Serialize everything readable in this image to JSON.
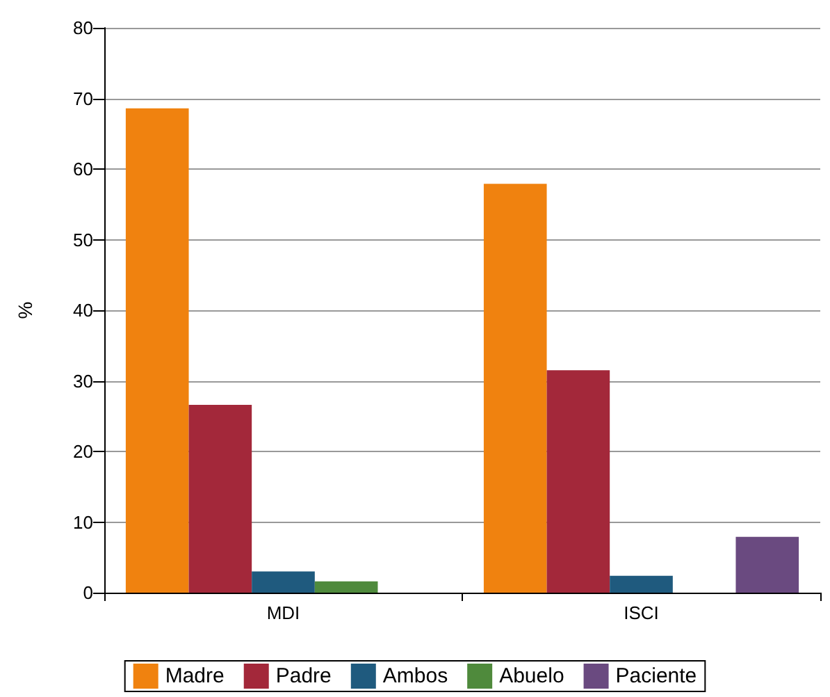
{
  "chart_data": {
    "type": "bar",
    "ylabel": "%",
    "categories": [
      "MDI",
      "ISCI"
    ],
    "series": [
      {
        "name": "Madre",
        "color": "#f0820f",
        "values": [
          68.6,
          57.9
        ]
      },
      {
        "name": "Padre",
        "color": "#a3283a",
        "values": [
          26.6,
          31.5
        ]
      },
      {
        "name": "Ambos",
        "color": "#1f5a7e",
        "values": [
          3.0,
          2.4
        ]
      },
      {
        "name": "Abuelo",
        "color": "#4f8a3c",
        "values": [
          1.6,
          0
        ]
      },
      {
        "name": "Paciente",
        "color": "#6a4a80",
        "values": [
          0,
          7.9
        ]
      }
    ],
    "ylim": [
      0,
      80
    ],
    "yticks": [
      0,
      10,
      20,
      30,
      40,
      50,
      60,
      70,
      80
    ],
    "grid": "y",
    "legend": "bottom"
  }
}
